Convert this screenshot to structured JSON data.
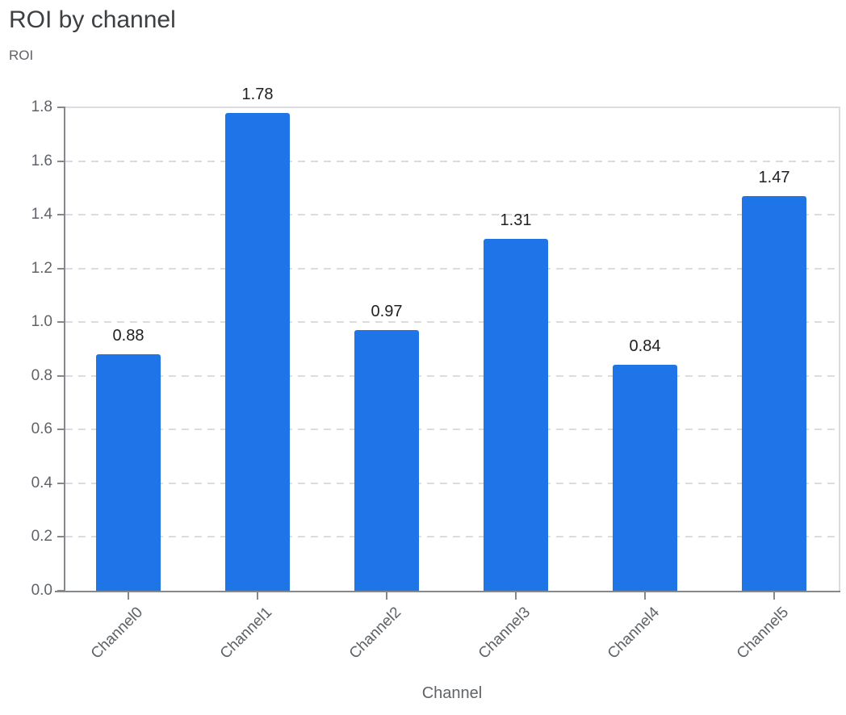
{
  "chart_data": {
    "type": "bar",
    "title": "ROI by channel",
    "ylabel": "ROI",
    "xlabel": "Channel",
    "categories": [
      "Channel0",
      "Channel1",
      "Channel2",
      "Channel3",
      "Channel4",
      "Channel5"
    ],
    "values": [
      0.88,
      1.78,
      0.97,
      1.31,
      0.84,
      1.47
    ],
    "bar_labels": [
      "0.88",
      "1.78",
      "0.97",
      "1.31",
      "0.84",
      "1.47"
    ],
    "ylim": [
      0,
      1.8
    ],
    "yticks": [
      0,
      0.2,
      0.4,
      0.6,
      0.8,
      1.0,
      1.2,
      1.4,
      1.6,
      1.8
    ],
    "ytick_labels": [
      "0.0",
      "0.2",
      "0.4",
      "0.6",
      "0.8",
      "1.0",
      "1.2",
      "1.4",
      "1.6",
      "1.8"
    ],
    "grid": "horizontal-dashed",
    "legend_position": "none",
    "colors": {
      "bar": "#1f74e8",
      "axis": "#85898d",
      "grid": "#dadce0",
      "title_text": "#3c4043",
      "tick_text": "#5f6368",
      "data_label_text": "#202124",
      "background": "#ffffff"
    }
  }
}
